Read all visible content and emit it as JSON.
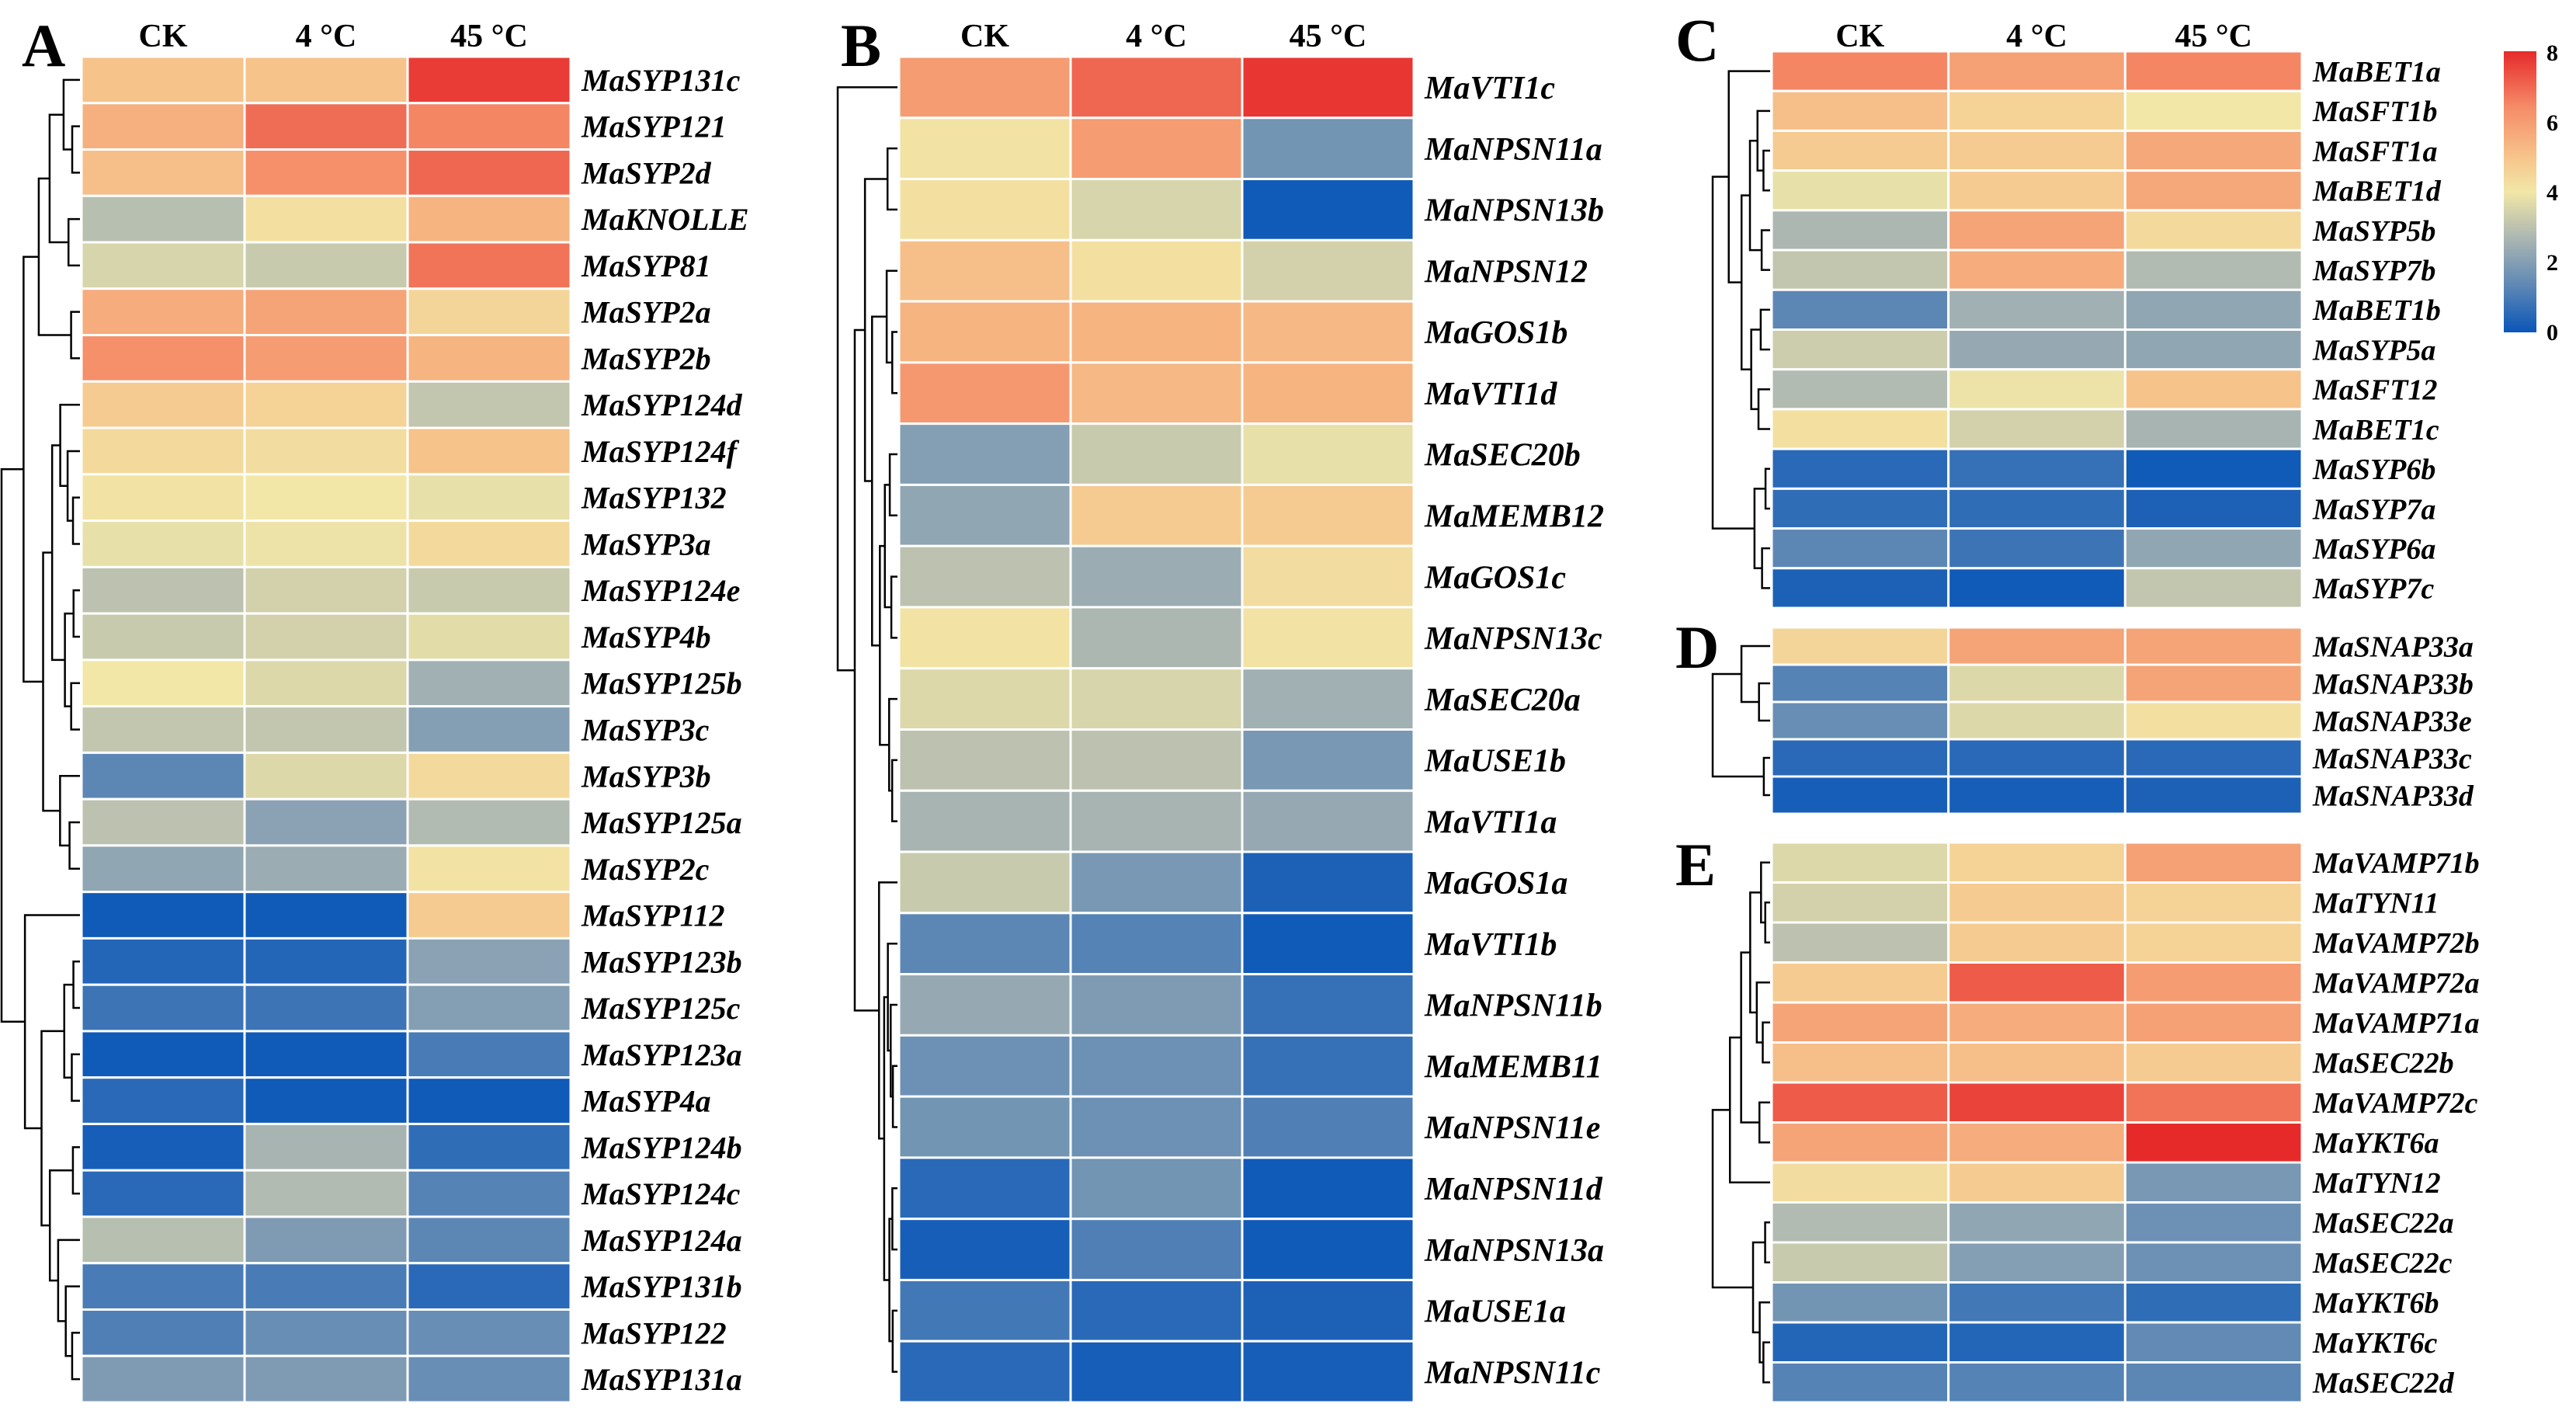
{
  "chart_data": [
    {
      "type": "heatmap",
      "panel": "A",
      "columns": [
        "CK",
        "4 °C",
        "45 °C"
      ],
      "rows": [
        {
          "gene": "MaSYP131c",
          "values": [
            5.0,
            5.0,
            7.7
          ]
        },
        {
          "gene": "MaSYP121",
          "values": [
            5.5,
            6.9,
            6.5
          ]
        },
        {
          "gene": "MaSYP2d",
          "values": [
            5.1,
            6.3,
            7.0
          ]
        },
        {
          "gene": "MaKNOLLE",
          "values": [
            2.9,
            4.2,
            5.4
          ]
        },
        {
          "gene": "MaSYP81",
          "values": [
            3.5,
            3.2,
            6.8
          ]
        },
        {
          "gene": "MaSYP2a",
          "values": [
            5.6,
            5.8,
            4.5
          ]
        },
        {
          "gene": "MaSYP2b",
          "values": [
            6.3,
            6.0,
            5.4
          ]
        },
        {
          "gene": "MaSYP124d",
          "values": [
            4.8,
            4.6,
            3.1
          ]
        },
        {
          "gene": "MaSYP124f",
          "values": [
            4.4,
            4.3,
            5.0
          ]
        },
        {
          "gene": "MaSYP132",
          "values": [
            4.1,
            4.0,
            3.8
          ]
        },
        {
          "gene": "MaSYP3a",
          "values": [
            3.8,
            3.9,
            4.4
          ]
        },
        {
          "gene": "MaSYP124e",
          "values": [
            3.0,
            3.4,
            3.2
          ]
        },
        {
          "gene": "MaSYP4b",
          "values": [
            3.2,
            3.4,
            3.7
          ]
        },
        {
          "gene": "MaSYP125b",
          "values": [
            4.0,
            3.6,
            2.5
          ]
        },
        {
          "gene": "MaSYP3c",
          "values": [
            3.1,
            3.1,
            2.0
          ]
        },
        {
          "gene": "MaSYP3b",
          "values": [
            1.3,
            3.6,
            4.4
          ]
        },
        {
          "gene": "MaSYP125a",
          "values": [
            3.0,
            2.1,
            2.8
          ]
        },
        {
          "gene": "MaSYP2c",
          "values": [
            2.2,
            2.4,
            4.1
          ]
        },
        {
          "gene": "MaSYP112",
          "values": [
            0.1,
            0.1,
            4.8
          ]
        },
        {
          "gene": "MaSYP123b",
          "values": [
            0.4,
            0.4,
            2.1
          ]
        },
        {
          "gene": "MaSYP125c",
          "values": [
            0.8,
            0.8,
            2.0
          ]
        },
        {
          "gene": "MaSYP123a",
          "values": [
            0.1,
            0.1,
            1.0
          ]
        },
        {
          "gene": "MaSYP4a",
          "values": [
            0.5,
            0.1,
            0.1
          ]
        },
        {
          "gene": "MaSYP124b",
          "values": [
            0.2,
            2.6,
            0.6
          ]
        },
        {
          "gene": "MaSYP124c",
          "values": [
            0.5,
            2.8,
            1.2
          ]
        },
        {
          "gene": "MaSYP124a",
          "values": [
            2.9,
            1.9,
            1.3
          ]
        },
        {
          "gene": "MaSYP131b",
          "values": [
            1.0,
            1.0,
            0.5
          ]
        },
        {
          "gene": "MaSYP122",
          "values": [
            1.1,
            1.5,
            1.5
          ]
        },
        {
          "gene": "MaSYP131a",
          "values": [
            1.9,
            1.9,
            1.5
          ]
        }
      ],
      "color_range": [
        0,
        8
      ]
    },
    {
      "type": "heatmap",
      "panel": "B",
      "columns": [
        "CK",
        "4 °C",
        "45 °C"
      ],
      "rows": [
        {
          "gene": "MaVTI1c",
          "values": [
            6.0,
            7.0,
            7.8
          ]
        },
        {
          "gene": "MaNPSN11a",
          "values": [
            4.1,
            6.0,
            1.7
          ]
        },
        {
          "gene": "MaNPSN13b",
          "values": [
            4.2,
            3.5,
            0.1
          ]
        },
        {
          "gene": "MaNPSN12",
          "values": [
            5.1,
            4.2,
            3.4
          ]
        },
        {
          "gene": "MaGOS1b",
          "values": [
            5.4,
            5.4,
            5.3
          ]
        },
        {
          "gene": "MaVTI1d",
          "values": [
            6.1,
            5.3,
            5.4
          ]
        },
        {
          "gene": "MaSEC20b",
          "values": [
            2.0,
            3.2,
            3.8
          ]
        },
        {
          "gene": "MaMEMB12",
          "values": [
            2.2,
            4.8,
            4.8
          ]
        },
        {
          "gene": "MaGOS1c",
          "values": [
            3.0,
            2.4,
            4.3
          ]
        },
        {
          "gene": "MaNPSN13c",
          "values": [
            4.1,
            2.7,
            4.1
          ]
        },
        {
          "gene": "MaSEC20a",
          "values": [
            3.6,
            3.5,
            2.5
          ]
        },
        {
          "gene": "MaUSE1b",
          "values": [
            3.0,
            3.0,
            1.8
          ]
        },
        {
          "gene": "MaVTI1a",
          "values": [
            2.6,
            2.6,
            2.3
          ]
        },
        {
          "gene": "MaGOS1a",
          "values": [
            3.2,
            1.8,
            0.3
          ]
        },
        {
          "gene": "MaVTI1b",
          "values": [
            1.3,
            1.2,
            0.1
          ]
        },
        {
          "gene": "MaNPSN11b",
          "values": [
            2.3,
            1.9,
            0.7
          ]
        },
        {
          "gene": "MaMEMB11",
          "values": [
            1.6,
            1.6,
            0.7
          ]
        },
        {
          "gene": "MaNPSN11e",
          "values": [
            1.7,
            1.6,
            1.1
          ]
        },
        {
          "gene": "MaNPSN11d",
          "values": [
            0.5,
            1.7,
            0.1
          ]
        },
        {
          "gene": "MaNPSN13a",
          "values": [
            0.2,
            1.1,
            0.1
          ]
        },
        {
          "gene": "MaUSE1a",
          "values": [
            0.9,
            0.5,
            0.3
          ]
        },
        {
          "gene": "MaNPSN11c",
          "values": [
            0.5,
            0.2,
            0.2
          ]
        }
      ],
      "color_range": [
        0,
        8
      ]
    },
    {
      "type": "heatmap",
      "panel": "C",
      "columns": [
        "CK",
        "4 °C",
        "45 °C"
      ],
      "rows": [
        {
          "gene": "MaBET1a",
          "values": [
            6.5,
            5.9,
            6.5
          ]
        },
        {
          "gene": "MaSFT1b",
          "values": [
            5.1,
            4.6,
            4.0
          ]
        },
        {
          "gene": "MaSFT1a",
          "values": [
            4.8,
            4.8,
            5.7
          ]
        },
        {
          "gene": "MaBET1d",
          "values": [
            3.8,
            4.8,
            5.7
          ]
        },
        {
          "gene": "MaSYP5b",
          "values": [
            2.7,
            5.8,
            4.4
          ]
        },
        {
          "gene": "MaSYP7b",
          "values": [
            3.1,
            5.6,
            2.8
          ]
        },
        {
          "gene": "MaBET1b",
          "values": [
            1.3,
            2.5,
            2.2
          ]
        },
        {
          "gene": "MaSYP5a",
          "values": [
            3.3,
            2.3,
            2.2
          ]
        },
        {
          "gene": "MaSFT12",
          "values": [
            2.8,
            3.9,
            5.0
          ]
        },
        {
          "gene": "MaBET1c",
          "values": [
            4.2,
            3.4,
            2.6
          ]
        },
        {
          "gene": "MaSYP6b",
          "values": [
            0.5,
            0.7,
            0.1
          ]
        },
        {
          "gene": "MaSYP7a",
          "values": [
            0.6,
            0.6,
            0.3
          ]
        },
        {
          "gene": "MaSYP6a",
          "values": [
            1.3,
            0.8,
            2.2
          ]
        },
        {
          "gene": "MaSYP7c",
          "values": [
            0.3,
            0.1,
            3.1
          ]
        }
      ],
      "color_range": [
        0,
        8
      ]
    },
    {
      "type": "heatmap",
      "panel": "D",
      "columns": [
        "CK",
        "4 °C",
        "45 °C"
      ],
      "rows": [
        {
          "gene": "MaSNAP33a",
          "values": [
            4.5,
            5.8,
            5.8
          ]
        },
        {
          "gene": "MaSNAP33b",
          "values": [
            1.2,
            3.6,
            5.8
          ]
        },
        {
          "gene": "MaSNAP33e",
          "values": [
            1.5,
            3.6,
            4.2
          ]
        },
        {
          "gene": "MaSNAP33c",
          "values": [
            0.5,
            0.5,
            0.5
          ]
        },
        {
          "gene": "MaSNAP33d",
          "values": [
            0.2,
            0.2,
            0.3
          ]
        }
      ],
      "color_range": [
        0,
        8
      ]
    },
    {
      "type": "heatmap",
      "panel": "E",
      "columns": [
        "CK",
        "4 °C",
        "45 °C"
      ],
      "rows": [
        {
          "gene": "MaVAMP71b",
          "values": [
            3.6,
            4.6,
            5.9
          ]
        },
        {
          "gene": "MaTYN11",
          "values": [
            3.4,
            4.8,
            4.6
          ]
        },
        {
          "gene": "MaVAMP72b",
          "values": [
            3.0,
            4.8,
            4.6
          ]
        },
        {
          "gene": "MaVAMP72a",
          "values": [
            4.8,
            7.2,
            6.0
          ]
        },
        {
          "gene": "MaVAMP71a",
          "values": [
            5.8,
            5.6,
            5.9
          ]
        },
        {
          "gene": "MaSEC22b",
          "values": [
            5.1,
            5.1,
            4.8
          ]
        },
        {
          "gene": "MaVAMP72c",
          "values": [
            7.2,
            7.6,
            6.8
          ]
        },
        {
          "gene": "MaYKT6a",
          "values": [
            5.8,
            5.6,
            8.0
          ]
        },
        {
          "gene": "MaTYN12",
          "values": [
            4.3,
            4.8,
            1.8
          ]
        },
        {
          "gene": "MaSEC22a",
          "values": [
            2.8,
            2.2,
            1.6
          ]
        },
        {
          "gene": "MaSEC22c",
          "values": [
            3.2,
            2.0,
            1.6
          ]
        },
        {
          "gene": "MaYKT6b",
          "values": [
            1.7,
            0.9,
            0.6
          ]
        },
        {
          "gene": "MaYKT6c",
          "values": [
            0.4,
            0.4,
            1.4
          ]
        },
        {
          "gene": "MaSEC22d",
          "values": [
            1.2,
            1.2,
            1.3
          ]
        }
      ],
      "color_range": [
        0,
        8
      ]
    }
  ],
  "colorbar": {
    "min": 0,
    "max": 8,
    "ticks": [
      "0",
      "2",
      "4",
      "6",
      "8"
    ],
    "stops": [
      "#0a56b8",
      "#5b86b5",
      "#a9b5b2",
      "#f2e7a7",
      "#f6c58c",
      "#f58c68",
      "#e62a2a"
    ]
  },
  "colors": {
    "grid_line": "#ffffff",
    "dendrogram": "#000000",
    "text": "#000000"
  }
}
